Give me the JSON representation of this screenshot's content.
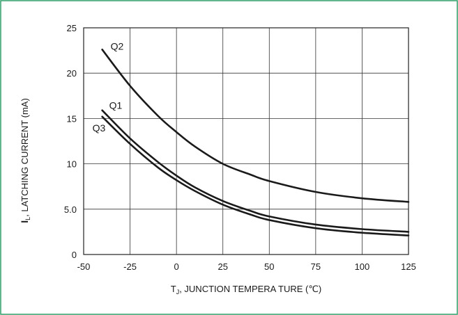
{
  "chart_data": {
    "type": "line",
    "title": "",
    "xlabel": {
      "prefix": "T",
      "subscript": "J",
      "text": ", JUNCTION TEMPERA TURE (℃)"
    },
    "ylabel": {
      "prefix": "I",
      "subscript": "L",
      "text": ", LATCHING CURRENT (mA)"
    },
    "xlim": [
      -50,
      125
    ],
    "ylim": [
      0,
      25
    ],
    "x_ticks": [
      {
        "value": -50,
        "label": "-50"
      },
      {
        "value": -25,
        "label": "-25"
      },
      {
        "value": 0,
        "label": "0"
      },
      {
        "value": 25,
        "label": "25"
      },
      {
        "value": 50,
        "label": "50"
      },
      {
        "value": 75,
        "label": "75"
      },
      {
        "value": 100,
        "label": "100"
      },
      {
        "value": 125,
        "label": "125"
      }
    ],
    "y_ticks": [
      {
        "value": 0,
        "label": "0"
      },
      {
        "value": 5,
        "label": "5.0"
      },
      {
        "value": 10,
        "label": "10"
      },
      {
        "value": 15,
        "label": "15"
      },
      {
        "value": 20,
        "label": "20"
      },
      {
        "value": 25,
        "label": "25"
      }
    ],
    "grid": true,
    "border_color": "#2e9e68",
    "line_color": "#1a1a1a",
    "series": [
      {
        "name": "Q2",
        "x": [
          -40,
          -25,
          -10,
          0,
          10,
          25,
          40,
          50,
          75,
          100,
          125
        ],
        "y": [
          22.6,
          18.6,
          15.3,
          13.5,
          11.9,
          10.0,
          8.8,
          8.1,
          6.9,
          6.2,
          5.8
        ]
      },
      {
        "name": "Q1",
        "x": [
          -40,
          -25,
          -10,
          0,
          10,
          25,
          40,
          50,
          75,
          100,
          125
        ],
        "y": [
          15.9,
          12.8,
          10.2,
          8.7,
          7.4,
          5.9,
          4.8,
          4.2,
          3.3,
          2.8,
          2.5
        ]
      },
      {
        "name": "Q3",
        "x": [
          -40,
          -25,
          -10,
          0,
          10,
          25,
          40,
          50,
          75,
          100,
          125
        ],
        "y": [
          15.2,
          12.2,
          9.6,
          8.2,
          7.0,
          5.5,
          4.4,
          3.8,
          2.9,
          2.4,
          2.1
        ]
      }
    ]
  }
}
